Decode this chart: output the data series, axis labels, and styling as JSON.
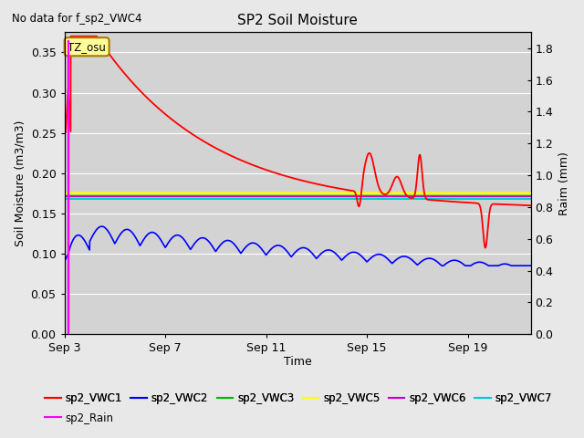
{
  "title": "SP2 Soil Moisture",
  "subtitle": "No data for f_sp2_VWC4",
  "ylabel_left": "Soil Moisture (m3/m3)",
  "ylabel_right": "Raim (mm)",
  "xlabel": "Time",
  "tz_label": "TZ_osu",
  "ylim_left": [
    0.0,
    0.375
  ],
  "ylim_right": [
    0.0,
    1.9
  ],
  "fig_facecolor": "#e8e8e8",
  "plot_bg_color": "#d3d3d3",
  "colors": {
    "sp2_VWC1": "#ff0000",
    "sp2_VWC2": "#0000ff",
    "sp2_VWC3": "#00bb00",
    "sp2_VWC5": "#ffff00",
    "sp2_VWC6": "#cc00cc",
    "sp2_VWC7": "#00cccc",
    "sp2_Rain": "#ff00ff"
  },
  "xtick_labels": [
    "Sep 3",
    "Sep 7",
    "Sep 11",
    "Sep 15",
    "Sep 19"
  ],
  "xtick_positions": [
    0,
    4,
    8,
    12,
    16
  ],
  "yticks_left": [
    0.0,
    0.05,
    0.1,
    0.15,
    0.2,
    0.25,
    0.3,
    0.35
  ],
  "yticks_right": [
    0.0,
    0.2,
    0.4,
    0.6,
    0.8,
    1.0,
    1.2,
    1.4,
    1.6,
    1.8
  ],
  "legend_row1": [
    {
      "label": "sp2_VWC1",
      "color": "#ff0000"
    },
    {
      "label": "sp2_VWC2",
      "color": "#0000ff"
    },
    {
      "label": "sp2_VWC3",
      "color": "#00bb00"
    },
    {
      "label": "sp2_VWC5",
      "color": "#ffff00"
    },
    {
      "label": "sp2_VWC6",
      "color": "#cc00cc"
    },
    {
      "label": "sp2_VWC7",
      "color": "#00cccc"
    }
  ],
  "legend_row2": [
    {
      "label": "sp2_Rain",
      "color": "#ff00ff"
    }
  ]
}
